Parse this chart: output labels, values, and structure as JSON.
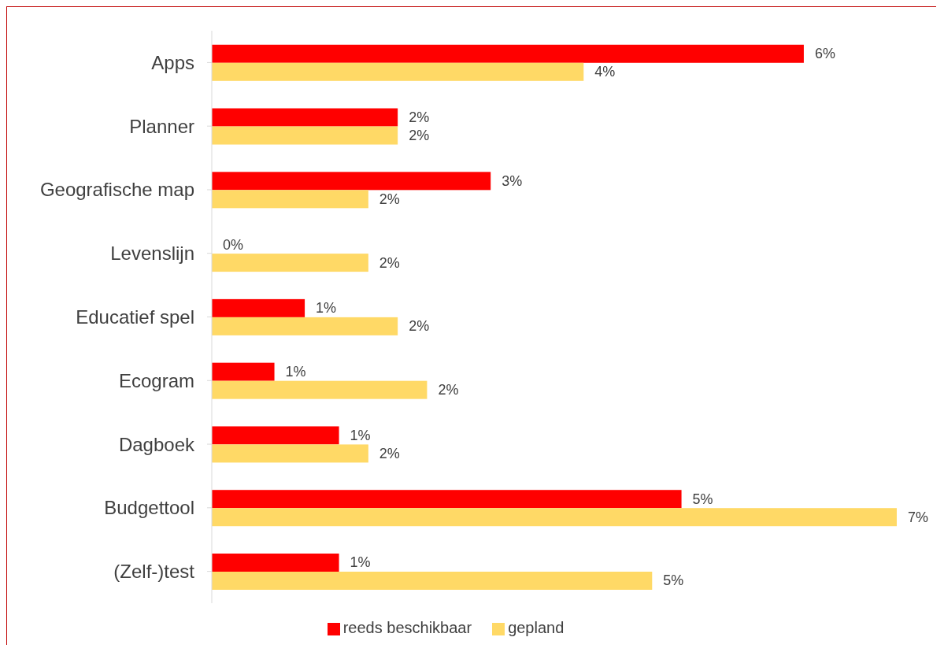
{
  "chart_data": {
    "type": "bar",
    "orientation": "horizontal",
    "categories": [
      "Apps",
      "Planner",
      "Geografische map",
      "Levenslijn",
      "Educatief spel",
      "Ecogram",
      "Dagboek",
      "Budgettool",
      "(Zelf-)test"
    ],
    "series": [
      {
        "name": "reeds beschikbaar",
        "color": "#ff0000",
        "values": [
          6.05,
          1.9,
          2.85,
          0,
          0.95,
          0.64,
          1.3,
          4.8,
          1.3
        ],
        "value_labels": [
          "6%",
          "2%",
          "3%",
          "0%",
          "1%",
          "1%",
          "1%",
          "5%",
          "1%"
        ]
      },
      {
        "name": "gepland",
        "color": "#ffd966",
        "values": [
          3.8,
          1.9,
          1.6,
          1.6,
          1.9,
          2.2,
          1.6,
          7.0,
          4.5
        ],
        "value_labels": [
          "4%",
          "2%",
          "2%",
          "2%",
          "2%",
          "2%",
          "2%",
          "7%",
          "5%"
        ]
      }
    ],
    "legend": "bottom",
    "grid": false
  }
}
